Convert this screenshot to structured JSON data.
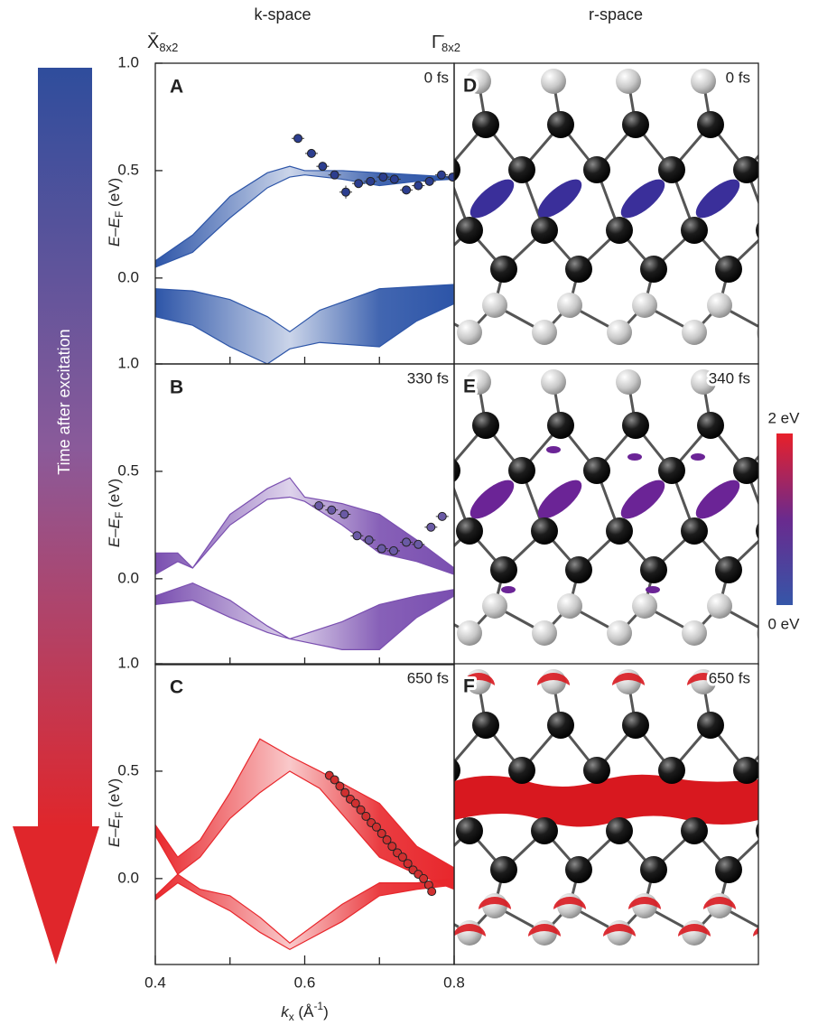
{
  "header": {
    "k_space": "k-space",
    "r_space": "r-space",
    "x_point": "X̄",
    "x_point_sub": "8x2",
    "gamma_point": "Γ̄",
    "gamma_point_sub": "8x2"
  },
  "arrow_label": "Time after excitation",
  "colorbar": {
    "max_label": "2 eV",
    "min_label": "0 eV"
  },
  "r_space_panels": [
    {
      "panel": "D",
      "time": "0 fs"
    },
    {
      "panel": "E",
      "time": "340 fs"
    },
    {
      "panel": "F",
      "time": "650 fs"
    }
  ],
  "chart_data": [
    {
      "type": "band-scatter",
      "panel": "A",
      "time": "0 fs",
      "color": "#2d55a8",
      "point_color": "#2c3e8f",
      "xlim": [
        0.4,
        0.8
      ],
      "ylim": [
        -0.4,
        1.0
      ],
      "yticks": [
        {
          "value": 1.0,
          "label": "1.0"
        },
        0.5,
        {
          "value": 0,
          "label": "0.0"
        }
      ],
      "xminorticks": [
        0.5,
        0.6,
        0.7
      ],
      "y_label": [
        "E",
        "–",
        "E",
        "F",
        " (eV)"
      ],
      "bands": [
        {
          "x": [
            0.4,
            0.45,
            0.5,
            0.55,
            0.58,
            0.6,
            0.65,
            0.7,
            0.75,
            0.8
          ],
          "upper": [
            0.08,
            0.2,
            0.38,
            0.49,
            0.52,
            0.5,
            0.5,
            0.49,
            0.48,
            0.47
          ],
          "lower": [
            0.05,
            0.12,
            0.28,
            0.42,
            0.47,
            0.48,
            0.46,
            0.43,
            0.45,
            0.46
          ]
        },
        {
          "x": [
            0.4,
            0.45,
            0.5,
            0.55,
            0.58,
            0.62,
            0.7,
            0.75,
            0.8
          ],
          "upper": [
            -0.05,
            -0.06,
            -0.1,
            -0.18,
            -0.25,
            -0.15,
            -0.05,
            -0.04,
            -0.03
          ],
          "lower": [
            -0.18,
            -0.22,
            -0.32,
            -0.4,
            -0.33,
            -0.3,
            -0.32,
            -0.2,
            -0.12
          ]
        }
      ],
      "points": {
        "x": [
          0.591,
          0.609,
          0.624,
          0.64,
          0.655,
          0.672,
          0.688,
          0.705,
          0.72,
          0.736,
          0.752,
          0.767,
          0.783,
          0.798
        ],
        "y": [
          0.65,
          0.58,
          0.52,
          0.48,
          0.4,
          0.44,
          0.45,
          0.47,
          0.46,
          0.41,
          0.43,
          0.45,
          0.48,
          0.47
        ],
        "yerr": [
          0.02,
          0.02,
          0.02,
          0.02,
          0.03,
          0.02,
          0.02,
          0.02,
          0.02,
          0.02,
          0.02,
          0.02,
          0.02,
          0.02
        ]
      }
    },
    {
      "type": "band-scatter",
      "panel": "B",
      "time": "330 fs",
      "color": "#7a4fb0",
      "point_color": "#6a5aa5",
      "xlim": [
        0.4,
        0.8
      ],
      "ylim": [
        -0.4,
        1.0
      ],
      "yticks": [
        {
          "value": 1.0,
          "label": "1.0"
        },
        0.5,
        {
          "value": 0,
          "label": "0.0"
        }
      ],
      "xminorticks": [
        0.5,
        0.6,
        0.7
      ],
      "y_label": [
        "E",
        "–",
        "E",
        "F",
        " (eV)"
      ],
      "bands": [
        {
          "x": [
            0.4,
            0.43,
            0.45,
            0.5,
            0.55,
            0.58,
            0.6,
            0.65,
            0.7,
            0.75,
            0.8
          ],
          "upper": [
            0.12,
            0.12,
            0.05,
            0.3,
            0.42,
            0.47,
            0.38,
            0.35,
            0.3,
            0.18,
            0.05
          ],
          "lower": [
            0.02,
            0.08,
            0.05,
            0.25,
            0.37,
            0.38,
            0.36,
            0.25,
            0.12,
            0.08,
            0.02
          ]
        },
        {
          "x": [
            0.4,
            0.45,
            0.5,
            0.55,
            0.58,
            0.65,
            0.7,
            0.75,
            0.8
          ],
          "upper": [
            -0.08,
            -0.02,
            -0.1,
            -0.22,
            -0.28,
            -0.2,
            -0.12,
            -0.08,
            -0.05
          ],
          "lower": [
            -0.12,
            -0.1,
            -0.18,
            -0.25,
            -0.28,
            -0.33,
            -0.33,
            -0.18,
            -0.08
          ]
        }
      ],
      "points": {
        "x": [
          0.619,
          0.636,
          0.653,
          0.67,
          0.686,
          0.703,
          0.719,
          0.736,
          0.752,
          0.769,
          0.784
        ],
        "y": [
          0.34,
          0.32,
          0.3,
          0.2,
          0.18,
          0.14,
          0.13,
          0.17,
          0.16,
          0.24,
          0.29
        ],
        "yerr": [
          0.02,
          0.02,
          0.02,
          0.02,
          0.02,
          0.02,
          0.02,
          0.02,
          0.02,
          0.02,
          0.02
        ]
      }
    },
    {
      "type": "band-scatter",
      "panel": "C",
      "time": "650 fs",
      "color": "#e8272c",
      "point_color": "#d03030",
      "xlim": [
        0.4,
        0.8
      ],
      "ylim": [
        -0.4,
        1.0
      ],
      "yticks": [
        {
          "value": 1.0,
          "label": "1.0"
        },
        0.5,
        {
          "value": 0,
          "label": "0.0"
        }
      ],
      "xminorticks": [
        0.5,
        0.7
      ],
      "xticks": [
        0.4,
        0.6,
        0.8
      ],
      "x_label": [
        "k",
        "x",
        " (Å",
        "-1",
        ")"
      ],
      "y_label": [
        "E",
        "–",
        "E",
        "F",
        " (eV)"
      ],
      "bands": [
        {
          "x": [
            0.4,
            0.43,
            0.46,
            0.5,
            0.54,
            0.58,
            0.62,
            0.7,
            0.75,
            0.8
          ],
          "upper": [
            0.25,
            0.1,
            0.18,
            0.4,
            0.65,
            0.57,
            0.5,
            0.35,
            0.15,
            0.05
          ],
          "lower": [
            0.2,
            0.02,
            0.1,
            0.28,
            0.4,
            0.5,
            0.42,
            0.1,
            0.02,
            -0.05
          ]
        },
        {
          "x": [
            0.4,
            0.43,
            0.46,
            0.5,
            0.54,
            0.58,
            0.65,
            0.7,
            0.75,
            0.8
          ],
          "upper": [
            -0.08,
            0.02,
            -0.05,
            -0.08,
            -0.18,
            -0.3,
            -0.12,
            -0.02,
            -0.02,
            0.0
          ],
          "lower": [
            -0.1,
            -0.02,
            -0.08,
            -0.15,
            -0.25,
            -0.33,
            -0.2,
            -0.08,
            -0.05,
            -0.03
          ]
        }
      ],
      "points": {
        "x": [
          0.633,
          0.64,
          0.647,
          0.654,
          0.661,
          0.668,
          0.675,
          0.682,
          0.689,
          0.696,
          0.703,
          0.71,
          0.717,
          0.724,
          0.731,
          0.738,
          0.745,
          0.752,
          0.759,
          0.766,
          0.77
        ],
        "y": [
          0.48,
          0.46,
          0.43,
          0.4,
          0.37,
          0.35,
          0.32,
          0.29,
          0.26,
          0.24,
          0.21,
          0.18,
          0.15,
          0.12,
          0.1,
          0.07,
          0.04,
          0.02,
          0.0,
          -0.03,
          -0.06
        ]
      }
    }
  ]
}
